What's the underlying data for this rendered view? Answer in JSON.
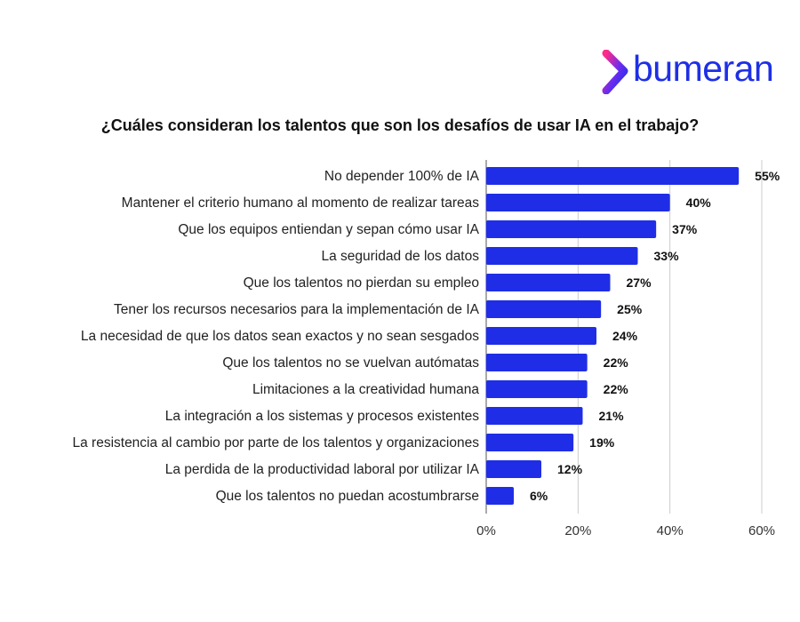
{
  "brand": {
    "name": "bumeran",
    "color": "#1e2fe6"
  },
  "chart_data": {
    "type": "bar",
    "orientation": "horizontal",
    "title": "¿Cuáles consideran los talentos que son los desafíos de usar IA en el trabajo?",
    "categories": [
      "No depender 100% de IA",
      "Mantener el criterio humano al momento de realizar tareas",
      "Que los equipos entiendan y sepan cómo usar IA",
      "La seguridad de los datos",
      "Que los talentos no pierdan su empleo",
      "Tener los recursos necesarios para la implementación de IA",
      "La necesidad de que los datos sean exactos y no sean sesgados",
      "Que los talentos no se vuelvan autómatas",
      "Limitaciones a la creatividad humana",
      "La integración a los sistemas y procesos existentes",
      "La resistencia al cambio por parte de los talentos y organizaciones",
      "La perdida de la productividad laboral por utilizar IA",
      "Que los talentos no puedan acostumbrarse"
    ],
    "values": [
      55,
      40,
      37,
      33,
      27,
      25,
      24,
      22,
      22,
      21,
      19,
      12,
      6
    ],
    "value_labels": [
      "55%",
      "40%",
      "37%",
      "33%",
      "27%",
      "25%",
      "24%",
      "22%",
      "22%",
      "21%",
      "19%",
      "12%",
      "6%"
    ],
    "xlim": [
      0,
      60
    ],
    "xticks": [
      0,
      20,
      40,
      60
    ],
    "xtick_labels": [
      "0%",
      "20%",
      "40%",
      "60%"
    ],
    "grid": true,
    "bar_color": "#1f2ee6",
    "grid_color": "#cccccc"
  }
}
